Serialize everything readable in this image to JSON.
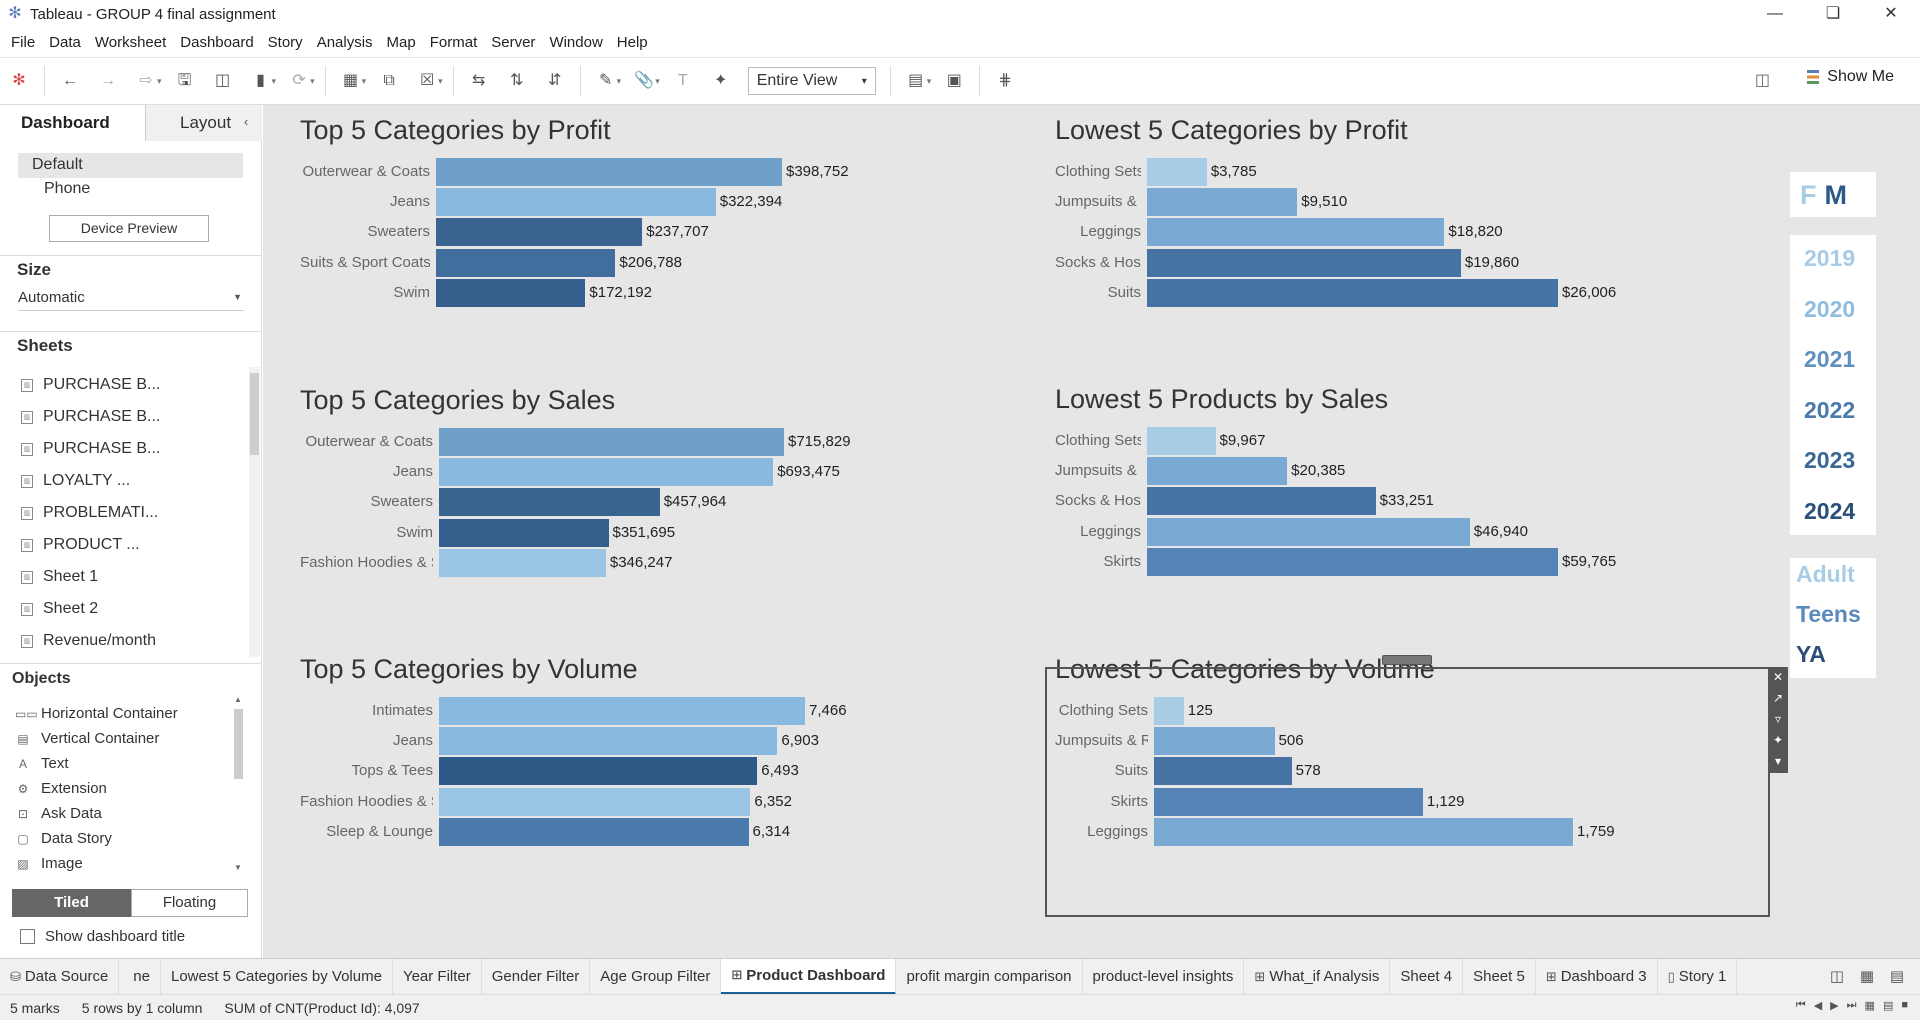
{
  "window": {
    "title": "Tableau - GROUP 4 final assignment",
    "controls": [
      "minimize-icon",
      "restore-icon",
      "close-icon"
    ]
  },
  "menu": [
    "File",
    "Data",
    "Worksheet",
    "Dashboard",
    "Story",
    "Analysis",
    "Map",
    "Format",
    "Server",
    "Window",
    "Help"
  ],
  "toolbar": {
    "fit_value": "Entire View",
    "show_me_label": "Show Me"
  },
  "left_panel": {
    "tab_dashboard": "Dashboard",
    "tab_layout": "Layout",
    "device_default": "Default",
    "device_phone": "Phone",
    "device_preview_button": "Device Preview",
    "size_header": "Size",
    "size_value": "Automatic",
    "sheets_header": "Sheets",
    "sheets": [
      "PURCHASE B...",
      "PURCHASE B...",
      "PURCHASE B...",
      "LOYALTY ...",
      "PROBLEMATI...",
      "PRODUCT ...",
      "Sheet 1",
      "Sheet 2",
      "Revenue/month"
    ],
    "objects_header": "Objects",
    "objects": [
      "Horizontal Container",
      "Vertical Container",
      "Text",
      "Extension",
      "Ask Data",
      "Data Story",
      "Image"
    ],
    "tiled_label": "Tiled",
    "floating_label": "Floating",
    "show_title_label": "Show dashboard title"
  },
  "colors": {
    "light": "#a9cce6",
    "lightmid": "#89b9de",
    "mid": "#6fa0c9",
    "midblue": "#5a8bbc",
    "dark": "#426e9e",
    "darker": "#38648f",
    "darkest": "#2f5a87"
  },
  "charts": [
    {
      "key": "c1",
      "title": "Top 5 Categories by Profit",
      "max": 398752,
      "rows": [
        {
          "label": "Outerwear & Coats",
          "value": 398752,
          "text": "$398,752",
          "color": "#6fa0c9"
        },
        {
          "label": "Jeans",
          "value": 322394,
          "text": "$322,394",
          "color": "#89b9de"
        },
        {
          "label": "Sweaters",
          "value": 237707,
          "text": "$237,707",
          "color": "#38648f"
        },
        {
          "label": "Suits & Sport Coats",
          "value": 206788,
          "text": "$206,788",
          "color": "#426e9e"
        },
        {
          "label": "Swim",
          "value": 172192,
          "text": "$172,192",
          "color": "#345f8c"
        }
      ]
    },
    {
      "key": "c2",
      "title": "Lowest 5 Categories by Profit",
      "max": 26006,
      "rows": [
        {
          "label": "Clothing Sets",
          "value": 3785,
          "text": "$3,785",
          "color": "#a9cce6"
        },
        {
          "label": "Jumpsuits & R..",
          "value": 9510,
          "text": "$9,510",
          "color": "#7aaad4"
        },
        {
          "label": "Leggings",
          "value": 18820,
          "text": "$18,820",
          "color": "#7aaad4"
        },
        {
          "label": "Socks & Hosiery",
          "value": 19860,
          "text": "$19,860",
          "color": "#4673a3"
        },
        {
          "label": "Suits",
          "value": 26006,
          "text": "$26,006",
          "color": "#4673a3"
        }
      ]
    },
    {
      "key": "c3",
      "title": "Top 5 Categories by Sales",
      "max": 715829,
      "rows": [
        {
          "label": "Outerwear & Coats",
          "value": 715829,
          "text": "$715,829",
          "color": "#6fa0c9"
        },
        {
          "label": "Jeans",
          "value": 693475,
          "text": "$693,475",
          "color": "#89b9de"
        },
        {
          "label": "Sweaters",
          "value": 457964,
          "text": "$457,964",
          "color": "#38648f"
        },
        {
          "label": "Swim",
          "value": 351695,
          "text": "$351,695",
          "color": "#345f8c"
        },
        {
          "label": "Fashion Hoodies & Sweat..",
          "value": 346247,
          "text": "$346,247",
          "color": "#9ac4e4"
        }
      ]
    },
    {
      "key": "c4",
      "title": "Lowest 5 Products by Sales",
      "max": 59765,
      "rows": [
        {
          "label": "Clothing Sets",
          "value": 9967,
          "text": "$9,967",
          "color": "#a9cce6"
        },
        {
          "label": "Jumpsuits & R..",
          "value": 20385,
          "text": "$20,385",
          "color": "#7aaad4"
        },
        {
          "label": "Socks & Hosiery",
          "value": 33251,
          "text": "$33,251",
          "color": "#4673a3"
        },
        {
          "label": "Leggings",
          "value": 46940,
          "text": "$46,940",
          "color": "#7aaad4"
        },
        {
          "label": "Skirts",
          "value": 59765,
          "text": "$59,765",
          "color": "#5583b5"
        }
      ]
    },
    {
      "key": "c5",
      "title": "Top 5 Categories by Volume",
      "max": 7466,
      "rows": [
        {
          "label": "Intimates",
          "value": 7466,
          "text": "7,466",
          "color": "#89b9de"
        },
        {
          "label": "Jeans",
          "value": 6903,
          "text": "6,903",
          "color": "#89b9de"
        },
        {
          "label": "Tops & Tees",
          "value": 6493,
          "text": "6,493",
          "color": "#2f5a87"
        },
        {
          "label": "Fashion Hoodies & Sweat..",
          "value": 6352,
          "text": "6,352",
          "color": "#9ac4e4"
        },
        {
          "label": "Sleep & Lounge",
          "value": 6314,
          "text": "6,314",
          "color": "#4a79ab"
        }
      ]
    },
    {
      "key": "c6",
      "title": "Lowest 5 Categories by Volume",
      "max": 1759,
      "rows": [
        {
          "label": "Clothing Sets",
          "value": 125,
          "text": "125",
          "color": "#a9cce6"
        },
        {
          "label": "Jumpsuits & Ro..",
          "value": 506,
          "text": "506",
          "color": "#7aaad4"
        },
        {
          "label": "Suits",
          "value": 578,
          "text": "578",
          "color": "#4673a3"
        },
        {
          "label": "Skirts",
          "value": 1129,
          "text": "1,129",
          "color": "#5583b5"
        },
        {
          "label": "Leggings",
          "value": 1759,
          "text": "1,759",
          "color": "#7aaad4"
        }
      ]
    }
  ],
  "filters": {
    "gender": {
      "f": "F",
      "m": "M"
    },
    "years": [
      {
        "label": "2019",
        "color": "#a9cce6"
      },
      {
        "label": "2020",
        "color": "#8fbde0"
      },
      {
        "label": "2021",
        "color": "#5f90c0"
      },
      {
        "label": "2022",
        "color": "#4a7aaa"
      },
      {
        "label": "2023",
        "color": "#3a6693"
      },
      {
        "label": "2024",
        "color": "#2b4f78"
      }
    ],
    "age_groups": [
      {
        "label": "Adult",
        "color": "#a9cce6"
      },
      {
        "label": "Teens",
        "color": "#5a8bbc"
      },
      {
        "label": "YA",
        "color": "#2b4f78"
      }
    ]
  },
  "bottom_tabs": [
    {
      "label": "Data Source",
      "icon": "database-icon"
    },
    {
      "label": "ne"
    },
    {
      "label": "Lowest 5 Categories by Volume"
    },
    {
      "label": "Year Filter"
    },
    {
      "label": "Gender Filter"
    },
    {
      "label": "Age Group Filter"
    },
    {
      "label": "Product Dashboard",
      "icon": "dashboard-icon",
      "active": true
    },
    {
      "label": "profit margin comparison"
    },
    {
      "label": "product-level insights"
    },
    {
      "label": "What_if Analysis",
      "icon": "dashboard-icon"
    },
    {
      "label": "Sheet 4"
    },
    {
      "label": "Sheet 5"
    },
    {
      "label": "Dashboard 3",
      "icon": "dashboard-icon"
    },
    {
      "label": "Story 1",
      "icon": "story-icon"
    }
  ],
  "status": {
    "marks": "5 marks",
    "rows": "5 rows by 1 column",
    "sum": "SUM of CNT(Product Id): 4,097"
  }
}
